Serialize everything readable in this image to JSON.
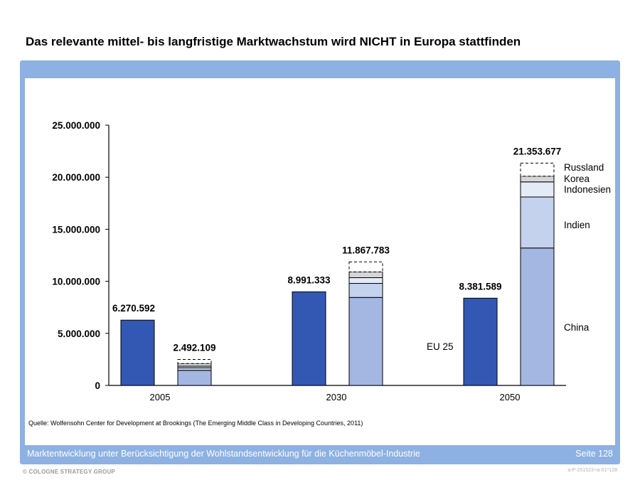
{
  "title": "Das relevante mittel- bis langfristige Marktwachstum wird NICHT in Europa stattfinden",
  "source": "Quelle: Wolfensohn Center for Development at Brookings (The Emerging Middle Class in Developing Countries, 2011)",
  "footer": {
    "text": "Marktentwicklung unter Berücksichtigung der Wohlstandsentwicklung für die Küchenmöbel-Industrie",
    "page": "Seite 128",
    "copyright": "© COLOGNE STRATEGY GROUP",
    "code": "a-P-251523-ra-01*128"
  },
  "colors": {
    "frame": "#8cb1e2",
    "eu25": "#3358b4",
    "china": "#a4b6e2",
    "indien": "#c5d2ee",
    "indonesien": "#e4eaf6",
    "korea": "#d6d6d6",
    "russland": "#ffffff"
  },
  "chart_data": {
    "type": "bar",
    "categories": [
      "2005",
      "2030",
      "2050"
    ],
    "ylim": [
      0,
      25000000
    ],
    "yticks": [
      0,
      5000000,
      10000000,
      15000000,
      20000000,
      25000000
    ],
    "ytick_labels": [
      "0",
      "5.000.000",
      "10.000.000",
      "15.000.000",
      "20.000.000",
      "25.000.000"
    ],
    "eu_label": "EU 25",
    "eu25": {
      "values": [
        6270592,
        8991333,
        8381589
      ],
      "labels": [
        "6.270.592",
        "8.991.333",
        "8.381.589"
      ]
    },
    "stack_series": [
      {
        "name": "China",
        "values": [
          1450000,
          8450000,
          13200000
        ]
      },
      {
        "name": "Indien",
        "values": [
          250000,
          1350000,
          4900000
        ]
      },
      {
        "name": "Indonesien",
        "values": [
          150000,
          550000,
          1450000
        ]
      },
      {
        "name": "Korea",
        "values": [
          250000,
          550000,
          550000
        ]
      },
      {
        "name": "Russland",
        "values": [
          392109,
          967783,
          1253677
        ]
      }
    ],
    "stack_totals": [
      2492109,
      11867783,
      21353677
    ],
    "stack_total_labels": [
      "2.492.109",
      "11.867.783",
      "21.353.677"
    ],
    "legend": [
      "Russland",
      "Korea",
      "Indonesien",
      "Indien",
      "China"
    ]
  }
}
